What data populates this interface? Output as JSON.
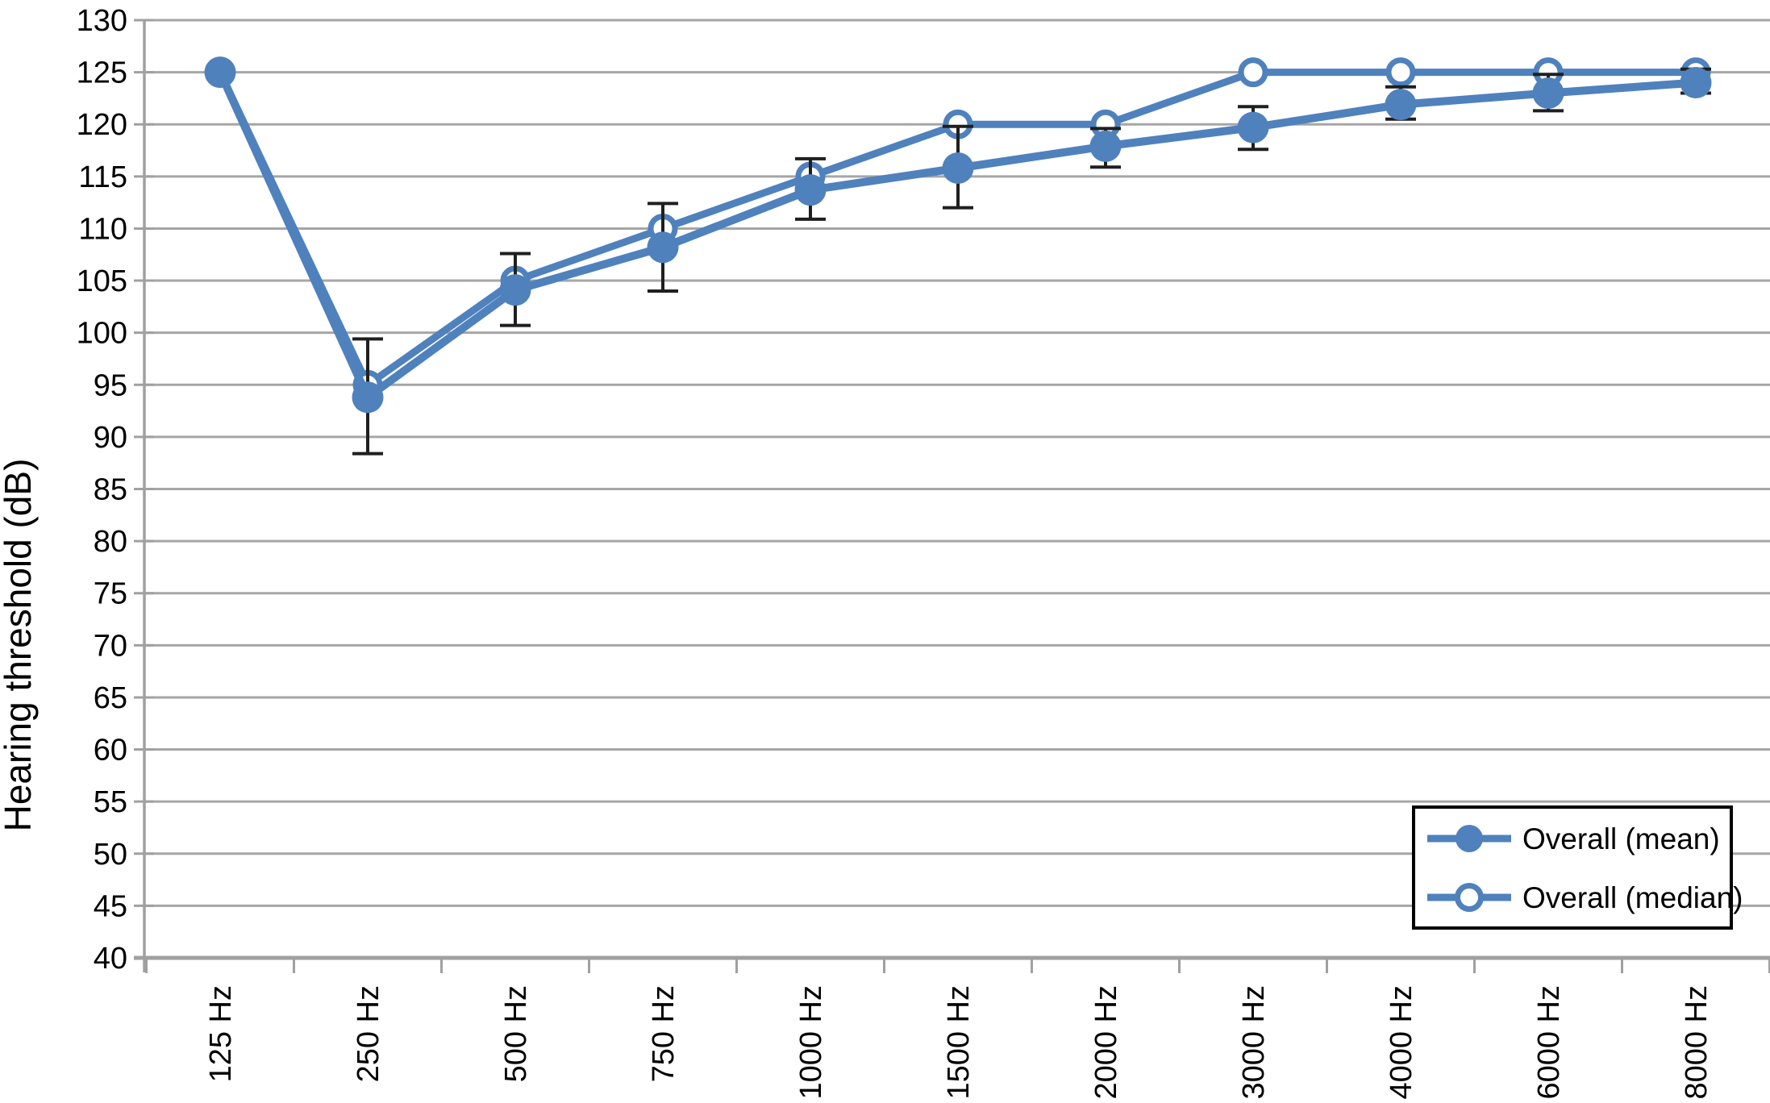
{
  "chart_data": {
    "type": "line",
    "title": "",
    "xlabel": "",
    "ylabel": "Hearing threshold (dB)",
    "ylim": [
      40,
      130
    ],
    "ytick_step": 5,
    "grid": "horizontal",
    "legend_position": "bottom-right",
    "categories": [
      "125 Hz",
      "250 Hz",
      "500 Hz",
      "750 Hz",
      "1000 Hz",
      "1500 Hz",
      "2000 Hz",
      "3000 Hz",
      "4000 Hz",
      "6000 Hz",
      "8000 Hz"
    ],
    "series": [
      {
        "name": "Overall (mean)",
        "marker": "filled-circle",
        "values": [
          125,
          93.8,
          104.1,
          108.2,
          113.7,
          115.8,
          117.9,
          119.7,
          121.9,
          123,
          124
        ],
        "error_low": [
          null,
          88.4,
          100.7,
          104,
          110.9,
          112,
          115.9,
          117.6,
          120.5,
          121.3,
          123
        ],
        "error_high": [
          null,
          99.4,
          107.6,
          112.4,
          116.7,
          119.8,
          119.6,
          121.7,
          123.6,
          124.8,
          125.3
        ]
      },
      {
        "name": "Overall (median)",
        "marker": "open-circle",
        "values": [
          125,
          95,
          105,
          110,
          115,
          120,
          120,
          125,
          125,
          125,
          125
        ]
      }
    ],
    "colors": {
      "series": "#4F81BD",
      "grid": "#A6A6A6",
      "axis": "#A0A0A0",
      "error_bar": "#1F1F1F",
      "text": "#000000",
      "legend_border": "#000000",
      "background": "#FFFFFF"
    }
  }
}
